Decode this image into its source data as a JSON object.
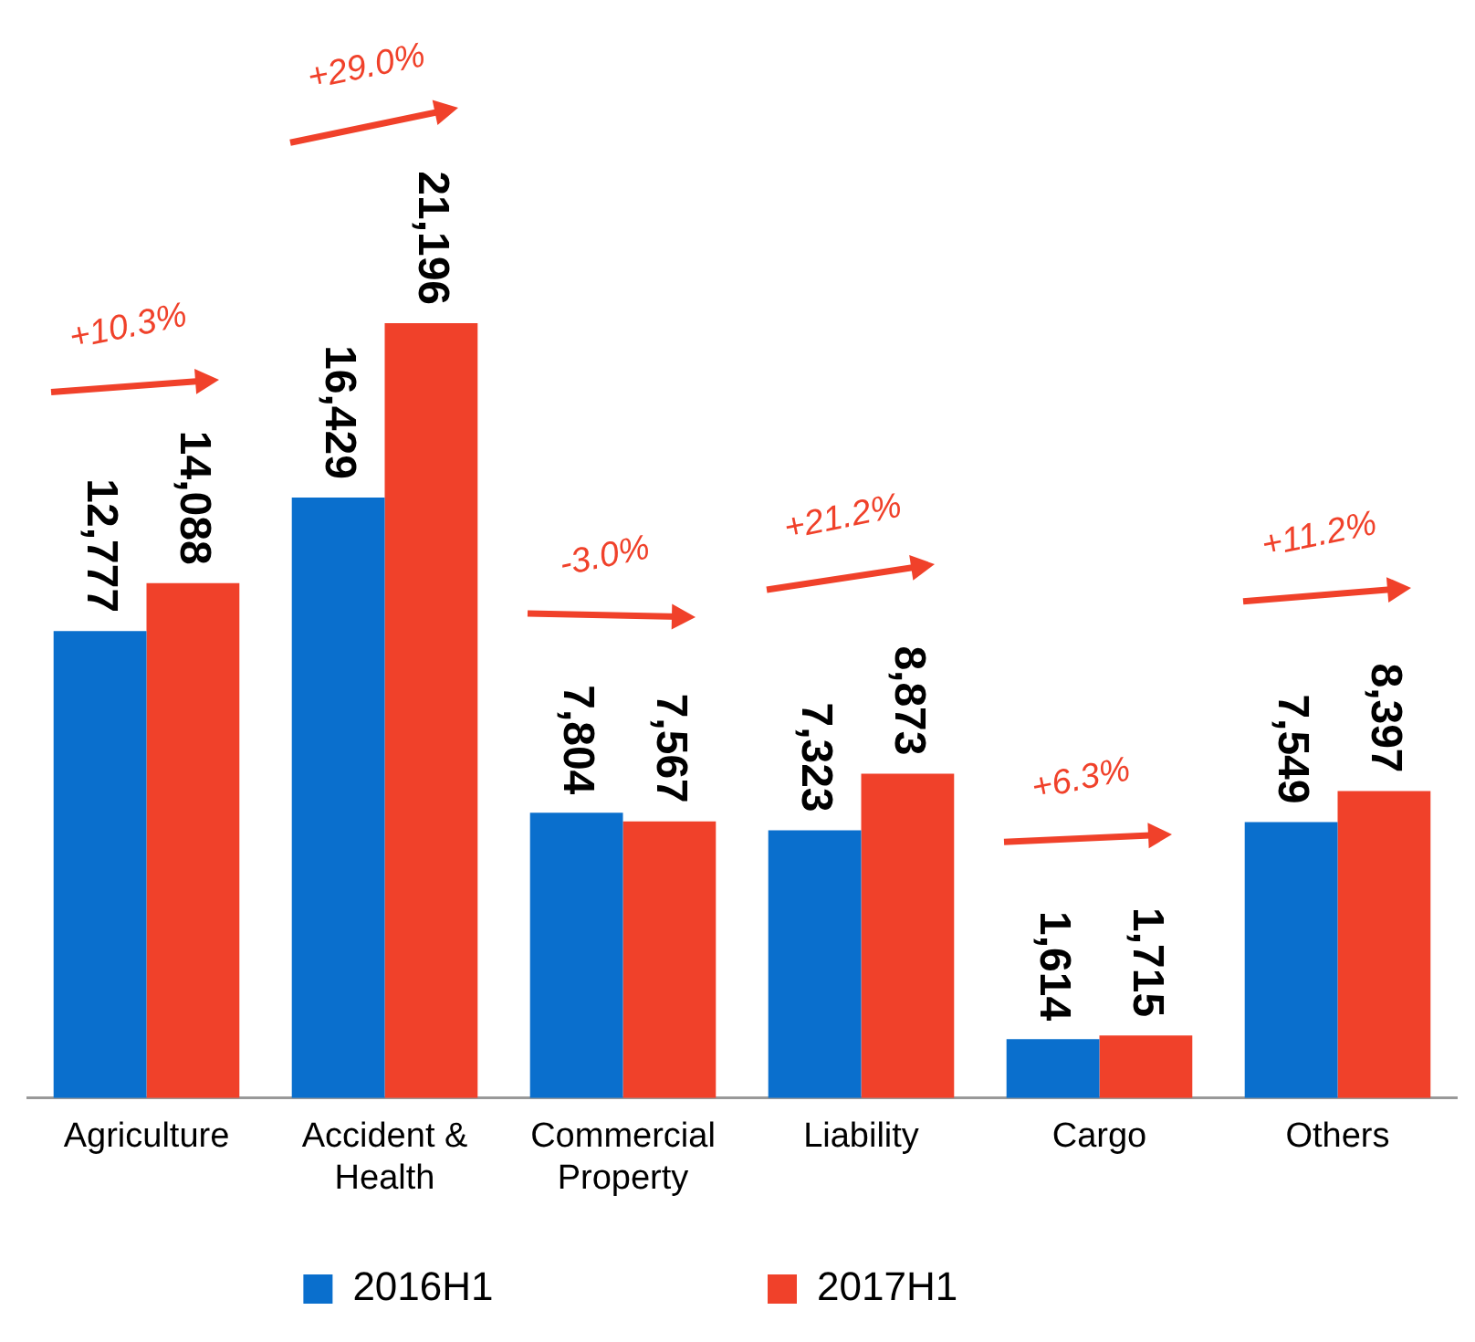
{
  "chart_data": {
    "type": "bar",
    "categories": [
      "Agriculture",
      "Accident & Health",
      "Commercial Property",
      "Liability",
      "Cargo",
      "Others"
    ],
    "series": [
      {
        "name": "2016H1",
        "color": "#0a6fcd",
        "values": [
          12777,
          16429,
          7804,
          7323,
          1614,
          7549
        ],
        "value_labels": [
          "12,777",
          "16,429",
          "7,804",
          "7,323",
          "1,614",
          "7,549"
        ]
      },
      {
        "name": "2017H1",
        "color": "#f0412a",
        "values": [
          14088,
          21196,
          7567,
          8873,
          1715,
          8397
        ],
        "value_labels": [
          "14,088",
          "21,196",
          "7,567",
          "8,873",
          "1,715",
          "8,397"
        ]
      }
    ],
    "tick_labels": "x",
    "legend": "bottom",
    "annotations": [
      "+10.3%",
      "+29.0%",
      "-3.0%",
      "+21.2%",
      "+6.3%",
      "+11.2%"
    ]
  }
}
